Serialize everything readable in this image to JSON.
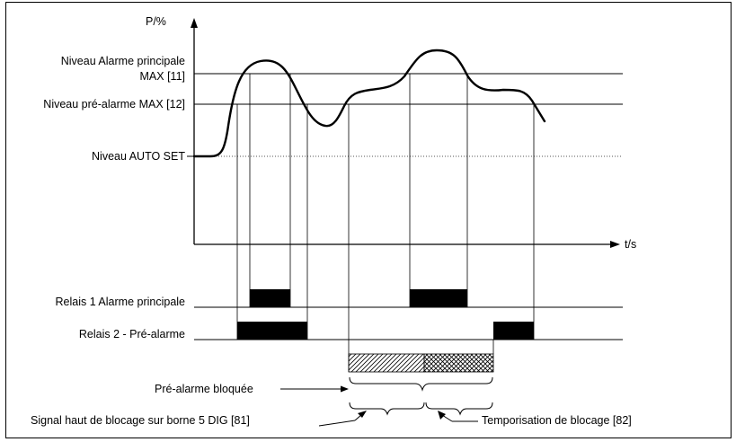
{
  "axes": {
    "y_label": "P/%",
    "x_label": "t/s"
  },
  "levels": {
    "alarm_main_line1": "Niveau Alarme principale",
    "alarm_main_line2": "MAX [11]",
    "pre_alarm": "Niveau pré-alarme MAX [12]",
    "auto_set": "Niveau AUTO SET"
  },
  "relays": {
    "relay1": "Relais 1 Alarme principale",
    "relay2": "Relais 2 - Pré-alarme"
  },
  "blocking": {
    "pre_alarm_blocked": "Pré-alarme bloquée",
    "signal_high": "Signal haut de blocage sur borne 5 DIG [81]",
    "delay": "Temporisation de blocage [82]"
  },
  "colors": {
    "line": "#000000",
    "dotted": "#555555",
    "bar": "#000000"
  }
}
